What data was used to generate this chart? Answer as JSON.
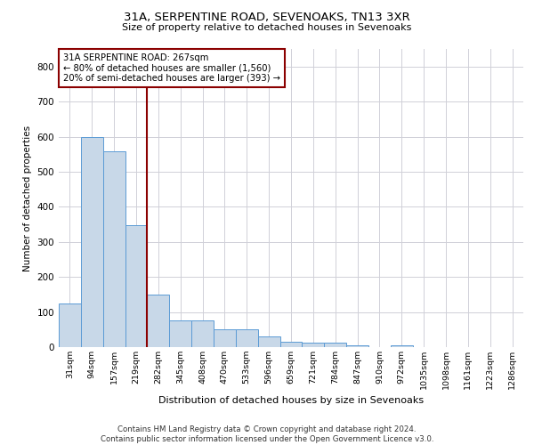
{
  "title1": "31A, SERPENTINE ROAD, SEVENOAKS, TN13 3XR",
  "title2": "Size of property relative to detached houses in Sevenoaks",
  "xlabel": "Distribution of detached houses by size in Sevenoaks",
  "ylabel": "Number of detached properties",
  "categories": [
    "31sqm",
    "94sqm",
    "157sqm",
    "219sqm",
    "282sqm",
    "345sqm",
    "408sqm",
    "470sqm",
    "533sqm",
    "596sqm",
    "659sqm",
    "721sqm",
    "784sqm",
    "847sqm",
    "910sqm",
    "972sqm",
    "1035sqm",
    "1098sqm",
    "1161sqm",
    "1223sqm",
    "1286sqm"
  ],
  "values": [
    125,
    600,
    557,
    347,
    150,
    77,
    77,
    50,
    50,
    30,
    14,
    13,
    13,
    6,
    0,
    6,
    0,
    0,
    0,
    0,
    0
  ],
  "bar_color": "#c8d8e8",
  "bar_edge_color": "#5b9bd5",
  "vline_x_index": 4,
  "vline_color": "#8b0000",
  "annotation_text": "31A SERPENTINE ROAD: 267sqm\n← 80% of detached houses are smaller (1,560)\n20% of semi-detached houses are larger (393) →",
  "annotation_box_color": "#ffffff",
  "annotation_box_edge": "#8b0000",
  "ylim": [
    0,
    850
  ],
  "yticks": [
    0,
    100,
    200,
    300,
    400,
    500,
    600,
    700,
    800
  ],
  "footer": "Contains HM Land Registry data © Crown copyright and database right 2024.\nContains public sector information licensed under the Open Government Licence v3.0.",
  "bg_color": "#ffffff",
  "grid_color": "#d0d0d8"
}
